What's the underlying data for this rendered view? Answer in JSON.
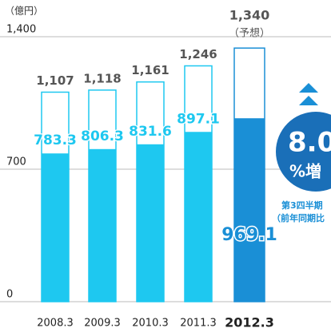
{
  "chart_data": {
    "type": "bar",
    "unit_label": "（億円）",
    "categories": [
      "2008.3",
      "2009.3",
      "2010.3",
      "2011.3",
      "2012.3"
    ],
    "series": [
      {
        "name": "total",
        "values": [
          1107,
          1118,
          1161,
          1246,
          1340
        ],
        "value_labels": [
          "1,107",
          "1,118",
          "1,161",
          "1,246",
          "1,340"
        ],
        "colors": [
          "#1ec8f0",
          "#1ec8f0",
          "#1ec8f0",
          "#1ec8f0",
          "#1a8fd6"
        ]
      },
      {
        "name": "part",
        "values": [
          783.3,
          806.3,
          831.6,
          897.1,
          969.1
        ],
        "colors": [
          "#1ec8f0",
          "#1ec8f0",
          "#1ec8f0",
          "#1ec8f0",
          "#1a8fd6"
        ]
      }
    ],
    "forecast_label": "（予想）",
    "annotation": {
      "value": "8.0",
      "unit": "%増",
      "note1": "第3四半期",
      "note2": "（前年同期比"
    },
    "ylim": [
      0,
      1400
    ],
    "yticks": [
      0,
      700,
      {
        "value": 1400,
        "label": "1,400"
      }
    ],
    "grid": true
  }
}
